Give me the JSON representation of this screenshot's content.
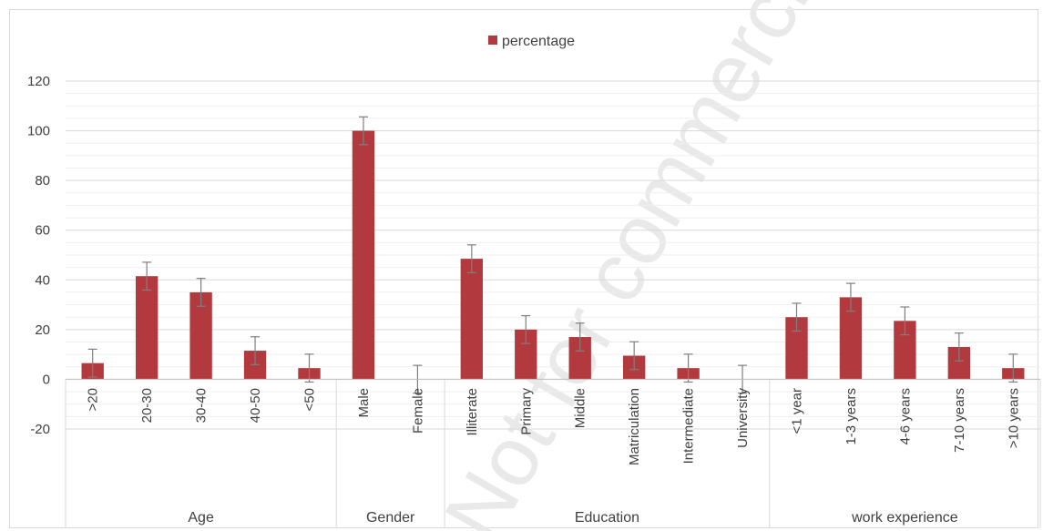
{
  "chart_data": {
    "type": "bar",
    "legend": {
      "label": "percentage",
      "position": "top-center"
    },
    "colors": {
      "bar": "#b23a3e",
      "error_bar": "#7f7f7f",
      "grid": "#d9d9d9"
    },
    "ylim": [
      -20,
      120
    ],
    "yticks": [
      -20,
      0,
      20,
      40,
      60,
      80,
      100,
      120
    ],
    "grid": true,
    "groups": [
      {
        "name": "Age",
        "categories": [
          ">20",
          "20-30",
          "30-40",
          "40-50",
          "<50"
        ],
        "values": [
          6.5,
          41.5,
          35,
          11.5,
          4.5
        ]
      },
      {
        "name": "Gender",
        "categories": [
          "Male",
          "Female"
        ],
        "values": [
          100,
          0
        ]
      },
      {
        "name": "Education",
        "categories": [
          "Illiterate",
          "Primary",
          "Middle",
          "Matriculation",
          "Intermediate",
          "University"
        ],
        "values": [
          48.5,
          20,
          17,
          9.5,
          4.5,
          0
        ]
      },
      {
        "name": "work experience",
        "categories": [
          "<1 year",
          "1-3 years",
          "4-6 years",
          "7-10 years",
          ">10 years"
        ],
        "values": [
          25,
          33,
          23.5,
          13,
          4.5
        ]
      }
    ],
    "error_bar": 5.6
  },
  "watermark": "Not for commercial use only"
}
